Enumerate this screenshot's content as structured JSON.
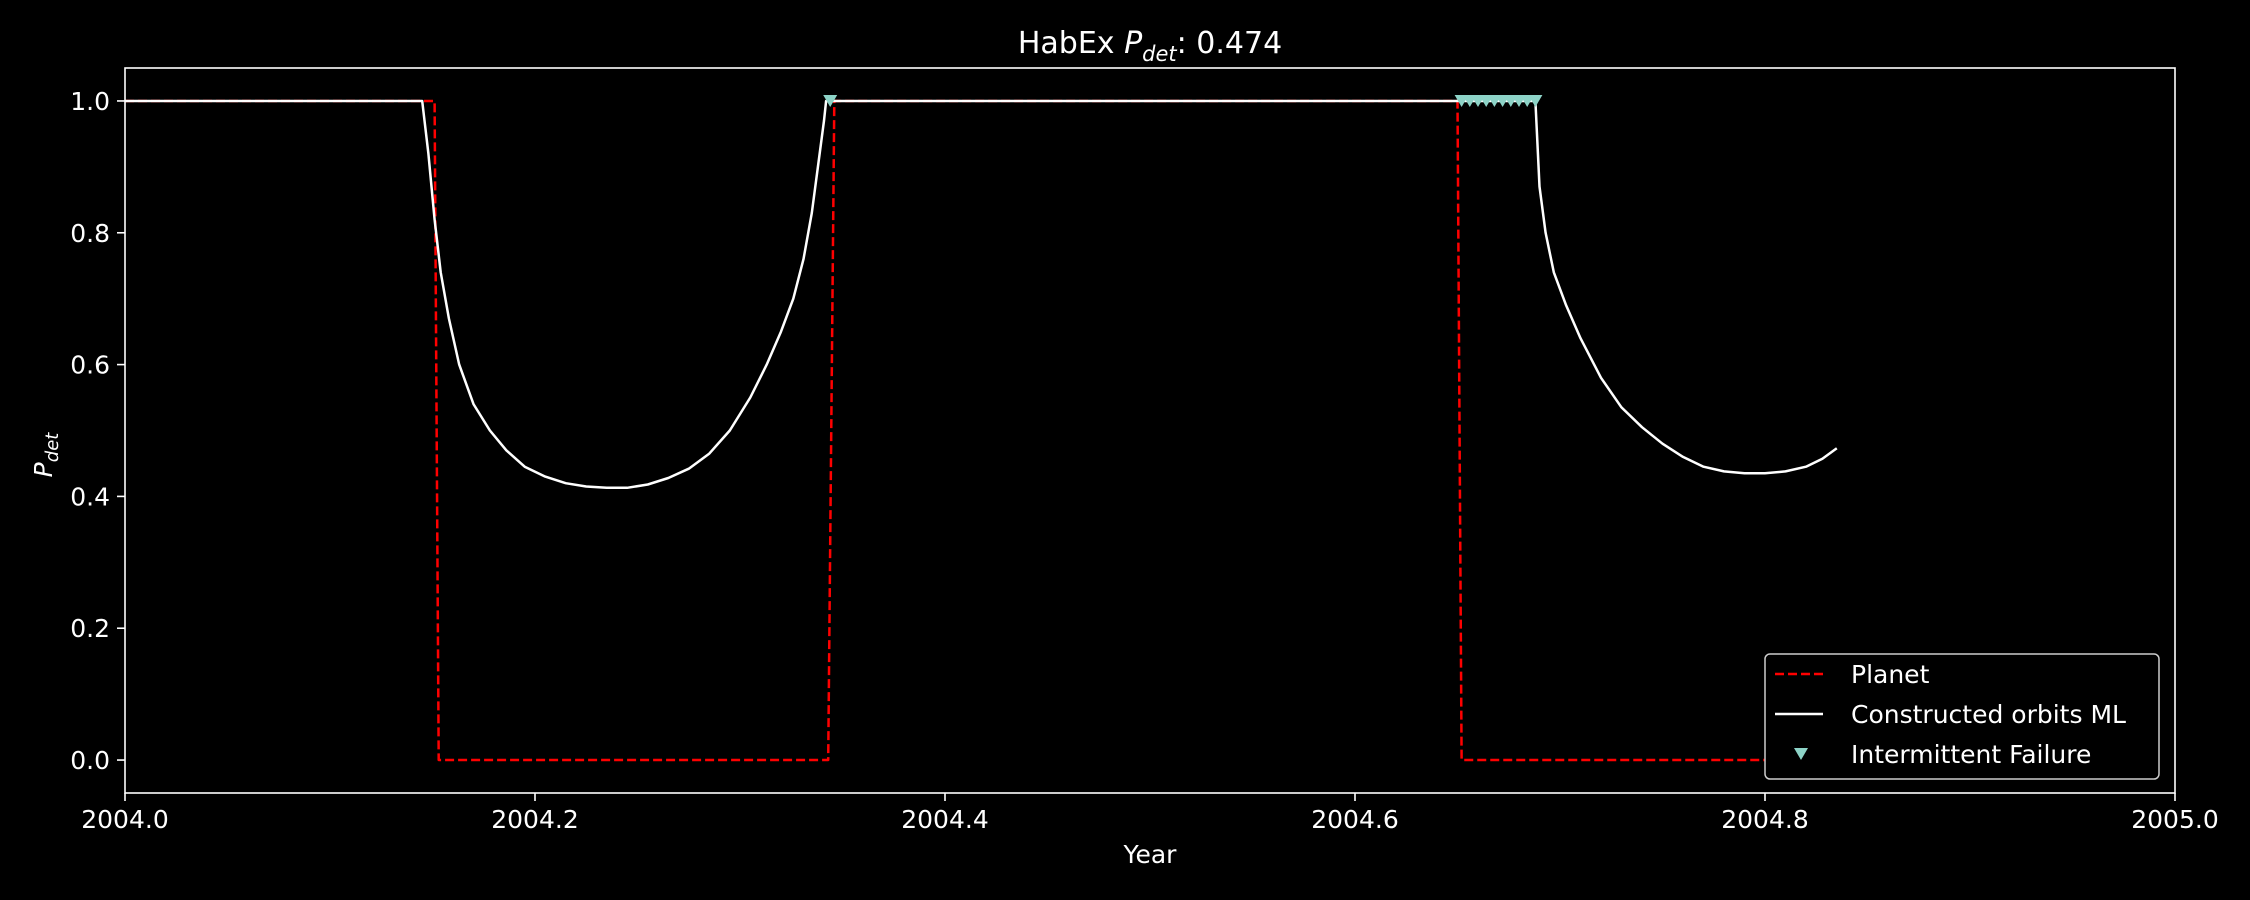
{
  "chart_data": {
    "type": "line",
    "title_main": "HabEx ",
    "title_sym": "P",
    "title_sub": "det",
    "title_value": ": 0.474",
    "xlabel": "Year",
    "ylabel_sym": "P",
    "ylabel_sub": "det",
    "xlim": [
      2004.0,
      2005.0
    ],
    "ylim": [
      -0.05,
      1.05
    ],
    "xticks": [
      2004.0,
      2004.2,
      2004.4,
      2004.6,
      2004.8,
      2005.0
    ],
    "xtick_labels": [
      "2004.0",
      "2004.2",
      "2004.4",
      "2004.6",
      "2004.8",
      "2005.0"
    ],
    "yticks": [
      0.0,
      0.2,
      0.4,
      0.6,
      0.8,
      1.0
    ],
    "ytick_labels": [
      "0.0",
      "0.2",
      "0.4",
      "0.6",
      "0.8",
      "1.0"
    ],
    "grid": false,
    "legend_position": "lower-right",
    "series": [
      {
        "name": "Planet",
        "style": "dashed",
        "color": "#ff0000",
        "x": [
          2004.0,
          2004.151,
          2004.153,
          2004.343,
          2004.346,
          2004.65,
          2004.652,
          2004.835
        ],
        "y": [
          1.0,
          1.0,
          0.0,
          0.0,
          1.0,
          1.0,
          0.0,
          0.0
        ]
      },
      {
        "name": "Constructed orbits ML",
        "style": "solid",
        "color": "#ffffff",
        "x": [
          2004.0,
          2004.145,
          2004.148,
          2004.151,
          2004.154,
          2004.158,
          2004.163,
          2004.17,
          2004.178,
          2004.186,
          2004.195,
          2004.205,
          2004.215,
          2004.225,
          2004.235,
          2004.245,
          2004.255,
          2004.265,
          2004.275,
          2004.285,
          2004.295,
          2004.305,
          2004.313,
          2004.32,
          2004.326,
          2004.331,
          2004.335,
          2004.338,
          2004.341,
          2004.342,
          2004.65,
          2004.688,
          2004.69,
          2004.693,
          2004.697,
          2004.703,
          2004.71,
          2004.72,
          2004.73,
          2004.74,
          2004.75,
          2004.76,
          2004.77,
          2004.78,
          2004.79,
          2004.8,
          2004.81,
          2004.82,
          2004.828,
          2004.835
        ],
        "y": [
          1.0,
          1.0,
          0.92,
          0.82,
          0.74,
          0.67,
          0.6,
          0.54,
          0.5,
          0.47,
          0.445,
          0.43,
          0.42,
          0.415,
          0.413,
          0.413,
          0.418,
          0.428,
          0.442,
          0.465,
          0.5,
          0.55,
          0.6,
          0.65,
          0.7,
          0.76,
          0.83,
          0.9,
          0.97,
          1.0,
          1.0,
          1.0,
          0.87,
          0.8,
          0.74,
          0.69,
          0.64,
          0.58,
          0.535,
          0.505,
          0.48,
          0.46,
          0.445,
          0.438,
          0.435,
          0.435,
          0.438,
          0.445,
          0.457,
          0.473
        ]
      }
    ],
    "markers": {
      "name": "Intermittent Failure",
      "symbol": "triangle-down",
      "color": "#8dd3c7",
      "x": [
        2004.344,
        2004.652,
        2004.656,
        2004.66,
        2004.664,
        2004.668,
        2004.672,
        2004.676,
        2004.68,
        2004.684,
        2004.688
      ],
      "y": [
        1.0,
        1.0,
        1.0,
        1.0,
        1.0,
        1.0,
        1.0,
        1.0,
        1.0,
        1.0,
        1.0
      ]
    }
  }
}
